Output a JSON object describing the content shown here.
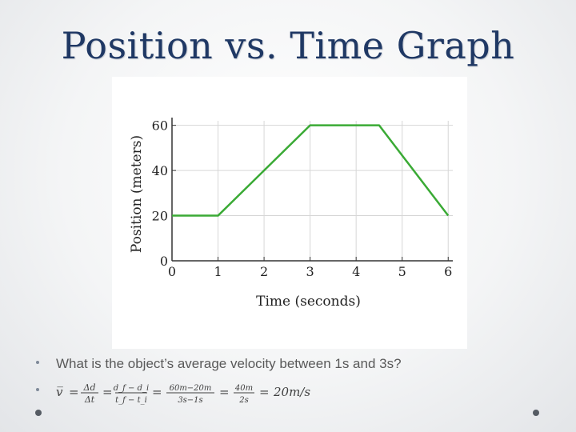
{
  "slide": {
    "title": "Position vs. Time Graph",
    "bullets": [
      {
        "text": "What is the object’s average velocity between 1s and 3s?"
      },
      {
        "formula": {
          "lhs": "v̅",
          "f1_num": "Δd",
          "f1_den": "Δt",
          "f2_num": "d_f − d_i",
          "f2_den": "t_f − t_i",
          "f3_num": "60m−20m",
          "f3_den": "3s−1s",
          "f4_num": "40m",
          "f4_den": "2s",
          "result": "20m/s"
        }
      }
    ]
  },
  "chart_data": {
    "type": "line",
    "xlabel": "Time (seconds)",
    "ylabel": "Position (meters)",
    "xlim": [
      0,
      6.1
    ],
    "ylim": [
      0,
      62
    ],
    "xticks": [
      0,
      1,
      2,
      3,
      4,
      5,
      6
    ],
    "yticks": [
      0,
      20,
      40,
      60
    ],
    "grid": true,
    "series": [
      {
        "x": [
          0,
          1,
          3,
          4.5,
          6
        ],
        "y": [
          20,
          20,
          60,
          60,
          20
        ],
        "color": "#3aaa35"
      }
    ]
  }
}
